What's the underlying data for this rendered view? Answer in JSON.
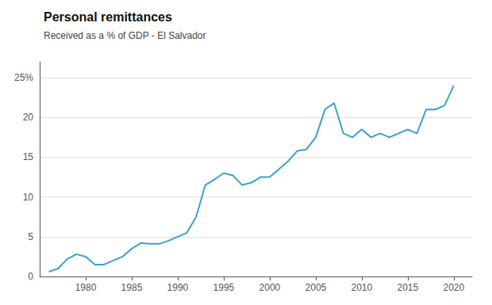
{
  "chart_data": {
    "type": "line",
    "title": "Personal remittances",
    "subtitle": "Received as a % of GDP - El Salvador",
    "x": [
      1976,
      1977,
      1978,
      1979,
      1980,
      1981,
      1982,
      1983,
      1984,
      1985,
      1986,
      1987,
      1988,
      1989,
      1990,
      1991,
      1992,
      1993,
      1994,
      1995,
      1996,
      1997,
      1998,
      1999,
      2000,
      2001,
      2002,
      2003,
      2004,
      2005,
      2006,
      2007,
      2008,
      2009,
      2010,
      2011,
      2012,
      2013,
      2014,
      2015,
      2016,
      2017,
      2018,
      2019,
      2020
    ],
    "values": [
      0.6,
      1.0,
      2.2,
      2.8,
      2.5,
      1.5,
      1.5,
      2.0,
      2.5,
      3.5,
      4.2,
      4.1,
      4.1,
      4.5,
      5.0,
      5.5,
      7.5,
      11.5,
      12.2,
      13.0,
      12.7,
      11.5,
      11.8,
      12.5,
      12.5,
      13.5,
      14.5,
      15.8,
      16.0,
      17.5,
      21.0,
      21.8,
      18.0,
      17.5,
      18.5,
      17.5,
      18.0,
      17.5,
      18.0,
      18.5,
      18.0,
      21.0,
      21.0,
      21.5,
      24.0
    ],
    "color": "#3a9fd4",
    "xlim": [
      1975,
      2022
    ],
    "ylim": [
      0,
      27
    ],
    "xticks": [
      1980,
      1985,
      1990,
      1995,
      2000,
      2005,
      2010,
      2015,
      2020
    ],
    "yticks": [
      0,
      5,
      10,
      15,
      20,
      {
        "value": 25,
        "label": "25%"
      }
    ],
    "grid": true
  }
}
